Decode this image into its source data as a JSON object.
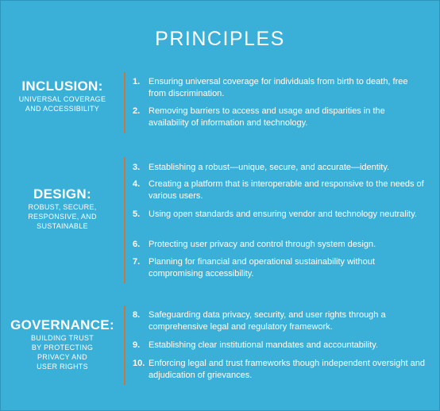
{
  "title": "PRINCIPLES",
  "sections": [
    {
      "heading": "INCLUSION:",
      "subtitle": "UNIVERSAL COVERAGE AND ACCESSIBILITY",
      "items": [
        {
          "num": "1.",
          "text": "Ensuring universal coverage for individuals from birth to death, free from discrimination."
        },
        {
          "num": "2.",
          "text": "Removing barriers to access and usage and disparities in the availability of information and technology."
        }
      ]
    },
    {
      "heading": "DESIGN:",
      "subtitle": "ROBUST, SECURE, RESPONSIVE, AND SUSTAINABLE",
      "items": [
        {
          "num": "3.",
          "text": "Establishing a robust—unique, secure, and accurate—identity."
        },
        {
          "num": "4.",
          "text": "Creating a platform that is interoperable and responsive to the needs of various users."
        },
        {
          "num": "5.",
          "text": "Using open standards and ensuring vendor and technology neutrality."
        },
        {
          "num": "6.",
          "text": "Protecting user privacy and control through system design."
        },
        {
          "num": "7.",
          "text": "Planning for financial and operational sustainability without compromising accessibility."
        }
      ]
    },
    {
      "heading": "GOVERNANCE:",
      "subtitle": "BUILDING TRUST BY PROTECTING PRIVACY AND USER RIGHTS",
      "items": [
        {
          "num": "8.",
          "text": "Safeguarding data privacy, security, and user rights through a comprehensive legal and regulatory framework."
        },
        {
          "num": "9.",
          "text": "Establishing clear institutional mandates and accountability."
        },
        {
          "num": "10.",
          "text": "Enforcing legal and trust frameworks though independent oversight and adjudication of grievances."
        }
      ]
    }
  ],
  "colors": {
    "background": "#3aafd8",
    "divider": "#c9783d",
    "text": "#ffffff"
  }
}
